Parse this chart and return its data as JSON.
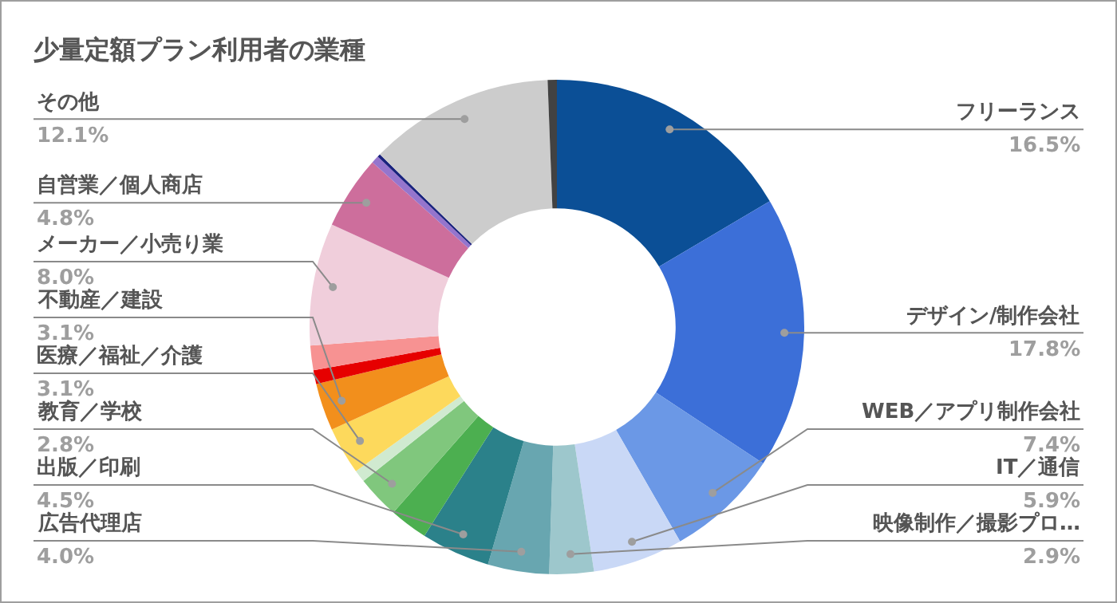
{
  "chart_data": {
    "type": "donut",
    "title": "少量定額プラン利用者の業種",
    "categories": [
      "フリーランス",
      "デザイン/制作会社",
      "WEB／アプリ制作会社",
      "IT／通信",
      "映像制作／撮影プロ…",
      "広告代理店",
      "出版／印刷",
      null,
      "教育／学校",
      null,
      "医療／福祉／介護",
      "不動産／建設",
      null,
      null,
      "メーカー／小売り業",
      "自営業／個人商店",
      null,
      null,
      "その他",
      null
    ],
    "values": [
      16.5,
      17.8,
      7.4,
      5.9,
      2.9,
      4.0,
      4.5,
      2.5,
      2.8,
      0.8,
      3.1,
      3.1,
      0.9,
      1.6,
      8.0,
      4.8,
      0.5,
      0.2,
      12.1,
      0.6
    ],
    "value_labels": [
      "16.5%",
      "17.8%",
      "7.4%",
      "5.9%",
      "2.9%",
      "4.0%",
      "4.5%",
      null,
      "2.8%",
      null,
      "3.1%",
      "3.1%",
      null,
      null,
      "8.0%",
      "4.8%",
      null,
      null,
      "12.1%",
      null
    ],
    "colors": [
      "#0b4f96",
      "#3c6fd8",
      "#6b98e6",
      "#c9d8f6",
      "#9dc7cc",
      "#68a6b0",
      "#2b818a",
      "#4caf50",
      "#80c77d",
      "#d0ead0",
      "#fdd95c",
      "#f28f1c",
      "#e60000",
      "#f79292",
      "#f0cedb",
      "#cd6e9c",
      "#9575cd",
      "#1a237e",
      "#cccccc",
      "#424242"
    ]
  }
}
